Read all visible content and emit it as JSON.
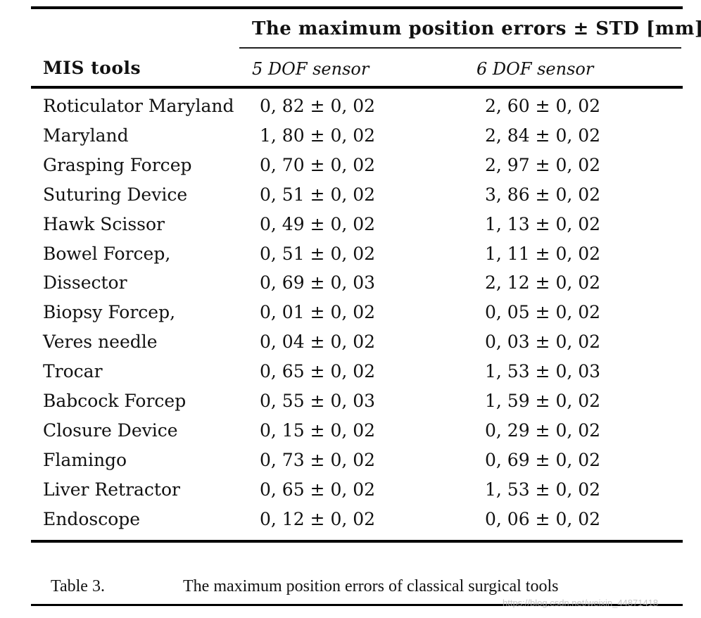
{
  "table": {
    "span_header": "The maximum position errors ± STD [mm]",
    "columns": {
      "tools": "MIS tools",
      "dof5": "5 DOF sensor",
      "dof6": "6 DOF sensor"
    },
    "rows": [
      {
        "tool": "Roticulator Maryland",
        "dof5": "0, 82 ± 0, 02",
        "dof6": "2, 60 ± 0, 02"
      },
      {
        "tool": "Maryland",
        "dof5": "1, 80 ± 0, 02",
        "dof6": "2, 84 ± 0, 02"
      },
      {
        "tool": "Grasping Forcep",
        "dof5": "0, 70 ± 0, 02",
        "dof6": "2, 97 ± 0, 02"
      },
      {
        "tool": "Suturing Device",
        "dof5": "0, 51 ± 0, 02",
        "dof6": "3, 86 ± 0, 02"
      },
      {
        "tool": "Hawk Scissor",
        "dof5": "0, 49 ± 0, 02",
        "dof6": "1, 13 ± 0, 02"
      },
      {
        "tool": "Bowel Forcep,",
        "dof5": "0, 51 ± 0, 02",
        "dof6": "1, 11 ± 0, 02"
      },
      {
        "tool": "Dissector",
        "dof5": "0, 69 ± 0, 03",
        "dof6": "2, 12 ± 0, 02"
      },
      {
        "tool": "Biopsy Forcep,",
        "dof5": "0, 01 ± 0, 02",
        "dof6": "0, 05 ± 0, 02"
      },
      {
        "tool": "Veres needle",
        "dof5": "0, 04 ± 0, 02",
        "dof6": "0, 03 ± 0, 02"
      },
      {
        "tool": "Trocar",
        "dof5": "0, 65 ± 0, 02",
        "dof6": "1, 53 ± 0, 03"
      },
      {
        "tool": "Babcock Forcep",
        "dof5": "0, 55 ± 0, 03",
        "dof6": "1, 59 ± 0, 02"
      },
      {
        "tool": "Closure Device",
        "dof5": "0, 15 ± 0, 02",
        "dof6": "0, 29 ± 0, 02"
      },
      {
        "tool": "Flamingo",
        "dof5": "0, 73 ± 0, 02",
        "dof6": "0, 69 ± 0, 02"
      },
      {
        "tool": "Liver Retractor",
        "dof5": "0, 65 ± 0, 02",
        "dof6": "1, 53 ± 0, 02"
      },
      {
        "tool": "Endoscope",
        "dof5": "0, 12 ± 0, 02",
        "dof6": "0, 06 ± 0, 02"
      }
    ]
  },
  "caption": {
    "label": "Table 3.",
    "text": "The maximum position errors of classical surgical tools"
  },
  "watermark": "https://blog.csdn.net/weixin_44871418"
}
